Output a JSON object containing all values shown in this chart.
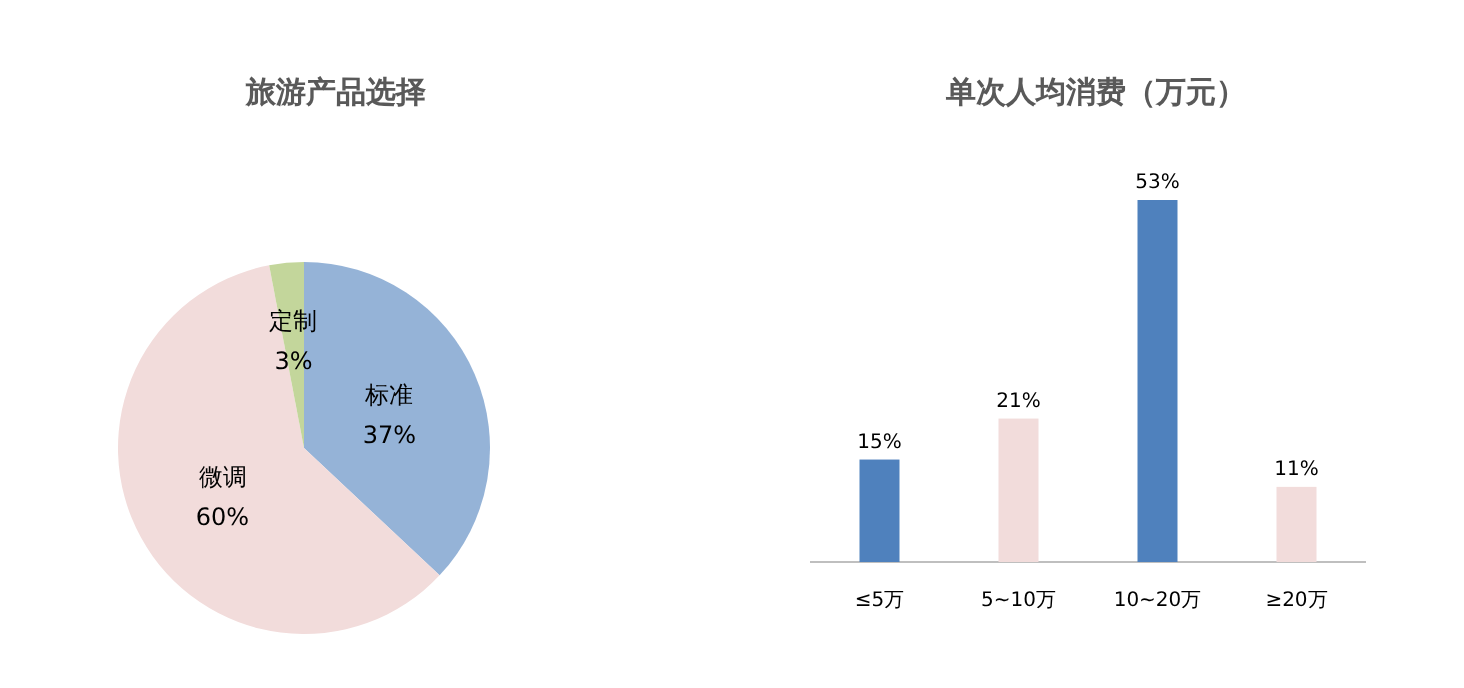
{
  "chart_data": [
    {
      "type": "pie",
      "title": "旅游产品选择",
      "categories": [
        "标准",
        "微调",
        "定制"
      ],
      "values": [
        37,
        60,
        3
      ],
      "colors": [
        "#95b3d7",
        "#f2dcdb",
        "#c3d69b"
      ],
      "value_labels": [
        "37%",
        "60%",
        "3%"
      ]
    },
    {
      "type": "bar",
      "title": "单次人均消费（万元）",
      "categories": [
        "≤5万",
        "5~10万",
        "10~20万",
        "≥20万"
      ],
      "values": [
        15,
        21,
        53,
        11
      ],
      "colors": [
        "#4f81bd",
        "#f2dcdb",
        "#4f81bd",
        "#f2dcdb"
      ],
      "value_labels": [
        "15%",
        "21%",
        "53%",
        "11%"
      ]
    }
  ]
}
